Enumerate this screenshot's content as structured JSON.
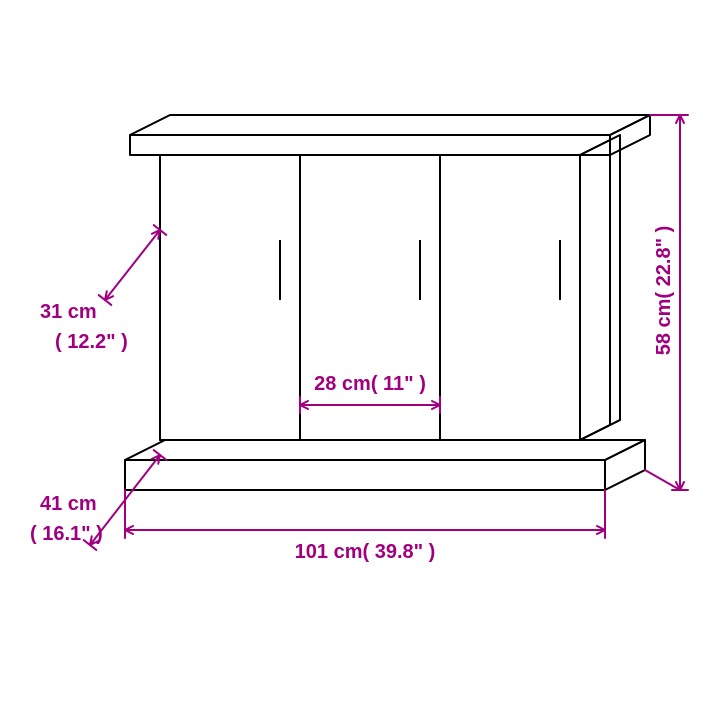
{
  "type": "dimension-diagram",
  "subject": "cabinet-sideboard",
  "colors": {
    "outline": "#000000",
    "dimension": "#a00080",
    "background": "#ffffff"
  },
  "stroke_width": 2,
  "font_size": 20,
  "font_weight": "bold",
  "dimensions": {
    "width": {
      "metric": "101 cm",
      "imperial": "( 39.8\" )"
    },
    "height": {
      "metric": "58 cm",
      "imperial": "( 22.8\" )"
    },
    "depth": {
      "metric": "41 cm",
      "imperial": "( 16.1\" )"
    },
    "door_height": {
      "metric": "31 cm",
      "imperial": "( 12.2\" )"
    },
    "door_width": {
      "metric": "28 cm",
      "imperial": "( 11\" )"
    }
  },
  "arrow_size": 8,
  "cap_size": 8
}
